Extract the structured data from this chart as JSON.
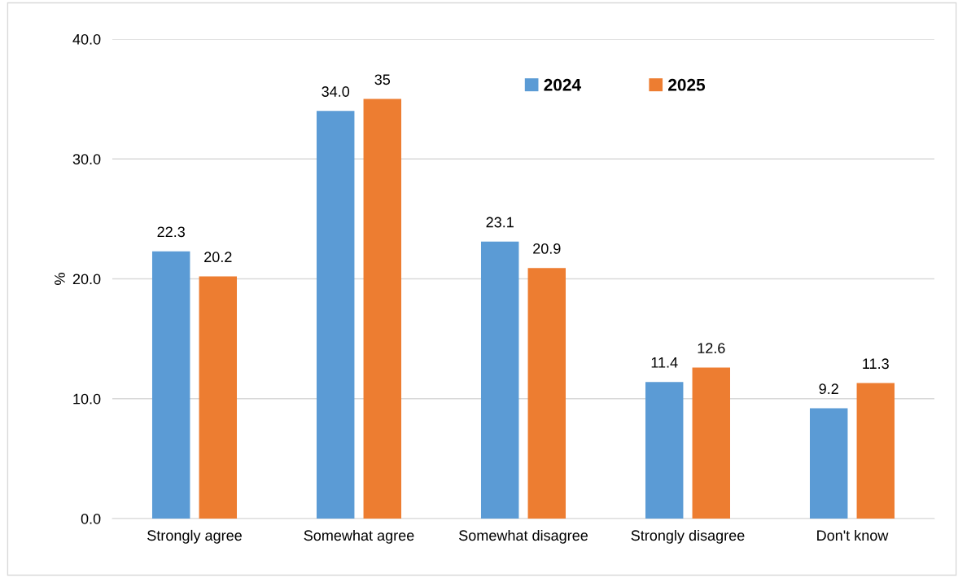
{
  "chart_data": {
    "type": "bar",
    "ylabel": "%",
    "categories": [
      "Strongly agree",
      "Somewhat agree",
      "Somewhat disagree",
      "Strongly disagree",
      "Don't know"
    ],
    "series": [
      {
        "name": "2024",
        "color": "#5b9bd5",
        "values": [
          22.3,
          34.0,
          23.1,
          11.4,
          9.2
        ],
        "value_labels": [
          "22.3",
          "34.0",
          "23.1",
          "11.4",
          "9.2"
        ]
      },
      {
        "name": "2025",
        "color": "#ed7d31",
        "values": [
          20.2,
          35,
          20.9,
          12.6,
          11.3
        ],
        "value_labels": [
          "20.2",
          "35",
          "20.9",
          "12.6",
          "11.3"
        ]
      }
    ],
    "ylim": [
      0,
      40
    ],
    "yticks": [
      {
        "value": 0,
        "label": "0.0"
      },
      {
        "value": 10,
        "label": "10.0"
      },
      {
        "value": 20,
        "label": "20.0"
      },
      {
        "value": 30,
        "label": "30.0"
      },
      {
        "value": 40,
        "label": "40.0"
      }
    ],
    "grid": "y",
    "legend": "top right"
  }
}
